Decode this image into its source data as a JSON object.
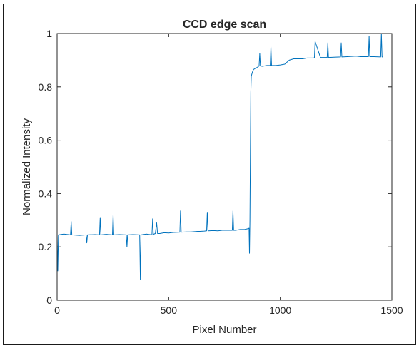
{
  "chart_data": {
    "type": "line",
    "title": "CCD edge scan",
    "xlabel": "Pixel Number",
    "ylabel": "Normalized Intensity",
    "xlim": [
      0,
      1500
    ],
    "ylim": [
      0,
      1
    ],
    "xticks": [
      0,
      500,
      1000,
      1500
    ],
    "xtick_labels": [
      "0",
      "500",
      "1000",
      "1500"
    ],
    "yticks": [
      0,
      0.2,
      0.4,
      0.6,
      0.8,
      1
    ],
    "ytick_labels": [
      "0",
      "0.2",
      "0.4",
      "0.6",
      "0.8",
      "1"
    ],
    "grid": false,
    "series": [
      {
        "color": "#0072BD",
        "x": [
          0,
          3,
          6,
          30,
          60,
          63,
          66,
          100,
          130,
          133,
          136,
          170,
          190,
          193,
          196,
          220,
          248,
          251,
          254,
          280,
          310,
          313,
          316,
          340,
          370,
          373,
          376,
          400,
          425,
          428,
          431,
          440,
          446,
          450,
          460,
          480,
          500,
          520,
          550,
          553,
          556,
          580,
          600,
          630,
          640,
          660,
          670,
          673,
          676,
          700,
          720,
          740,
          760,
          785,
          788,
          791,
          800,
          820,
          840,
          855,
          860,
          862,
          864,
          866,
          868,
          870,
          875,
          880,
          890,
          900,
          905,
          908,
          911,
          920,
          940,
          955,
          958,
          961,
          980,
          1000,
          1020,
          1040,
          1060,
          1080,
          1100,
          1120,
          1150,
          1153,
          1156,
          1180,
          1210,
          1213,
          1216,
          1240,
          1270,
          1273,
          1276,
          1300,
          1320,
          1340,
          1360,
          1380,
          1395,
          1398,
          1401,
          1420,
          1450,
          1453,
          1456,
          1460
        ],
        "y": [
          0.245,
          0.11,
          0.245,
          0.248,
          0.245,
          0.295,
          0.245,
          0.243,
          0.245,
          0.215,
          0.245,
          0.246,
          0.245,
          0.31,
          0.245,
          0.247,
          0.245,
          0.32,
          0.245,
          0.246,
          0.245,
          0.2,
          0.245,
          0.246,
          0.245,
          0.078,
          0.245,
          0.248,
          0.245,
          0.305,
          0.247,
          0.25,
          0.29,
          0.25,
          0.25,
          0.253,
          0.252,
          0.254,
          0.255,
          0.335,
          0.255,
          0.256,
          0.256,
          0.258,
          0.258,
          0.259,
          0.26,
          0.33,
          0.26,
          0.261,
          0.26,
          0.262,
          0.262,
          0.262,
          0.335,
          0.262,
          0.262,
          0.265,
          0.265,
          0.268,
          0.27,
          0.176,
          0.3,
          0.55,
          0.78,
          0.84,
          0.855,
          0.865,
          0.87,
          0.875,
          0.878,
          0.925,
          0.878,
          0.877,
          0.88,
          0.88,
          0.95,
          0.88,
          0.88,
          0.882,
          0.885,
          0.9,
          0.905,
          0.905,
          0.905,
          0.908,
          0.908,
          0.91,
          0.97,
          0.91,
          0.91,
          0.965,
          0.91,
          0.911,
          0.912,
          0.965,
          0.912,
          0.913,
          0.914,
          0.915,
          0.913,
          0.913,
          0.913,
          0.99,
          0.913,
          0.913,
          0.912,
          1.0,
          0.912,
          0.912
        ]
      }
    ]
  }
}
